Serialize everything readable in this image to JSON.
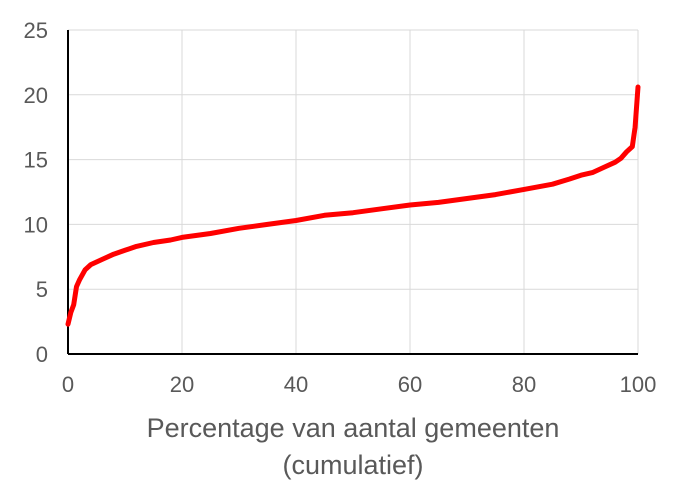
{
  "chart_data": {
    "type": "line",
    "title": "",
    "xlabel_lines": [
      "Percentage van aantal gemeenten",
      "(cumulatief)"
    ],
    "ylabel": "",
    "xlim": [
      0,
      100
    ],
    "ylim": [
      0,
      25
    ],
    "xticks": [
      0,
      20,
      40,
      60,
      80,
      100
    ],
    "yticks": [
      0,
      5,
      10,
      15,
      20,
      25
    ],
    "grid": true,
    "legend": "none",
    "series": [
      {
        "color": "#ff0000",
        "x": [
          0,
          0.5,
          1,
          1.5,
          2,
          3,
          4,
          5,
          6,
          8,
          10,
          12,
          15,
          18,
          20,
          25,
          30,
          35,
          40,
          45,
          50,
          55,
          60,
          65,
          70,
          75,
          80,
          85,
          88,
          90,
          92,
          94,
          96,
          97,
          98,
          99,
          99.5,
          100
        ],
        "y": [
          2.3,
          3.2,
          3.8,
          5.2,
          5.7,
          6.5,
          6.9,
          7.1,
          7.3,
          7.7,
          8.0,
          8.3,
          8.6,
          8.8,
          9.0,
          9.3,
          9.7,
          10.0,
          10.3,
          10.7,
          10.9,
          11.2,
          11.5,
          11.7,
          12.0,
          12.3,
          12.7,
          13.1,
          13.5,
          13.8,
          14.0,
          14.4,
          14.8,
          15.1,
          15.6,
          16.0,
          17.5,
          20.6
        ]
      }
    ]
  }
}
